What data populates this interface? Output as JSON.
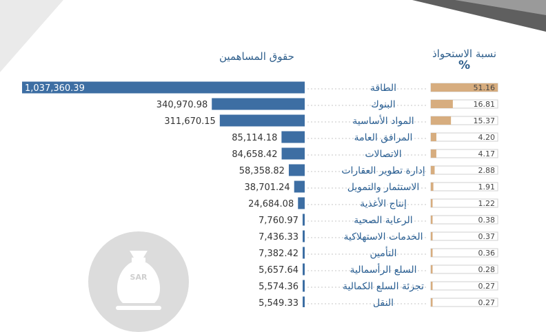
{
  "headers": {
    "equity": "حقوق المساهمين",
    "ownership": "نسبة الاستحواذ",
    "ownership_unit": "%"
  },
  "badge": {
    "text": "SAR",
    "icon": "money-bag-icon"
  },
  "colors": {
    "equity_bar": "#3d6ea3",
    "ownership_bar": "#d7ad7f",
    "header_text": "#2f5f8c",
    "label_text": "#2a5f93"
  },
  "chart_data": {
    "type": "bar",
    "categories": [
      "الطاقة",
      "البنوك",
      "المواد الأساسية",
      "المرافق العامة",
      "الاتصالات",
      "إدارة تطوير العقارات",
      "الاستثمار والتمويل",
      "إنتاج الأغذية",
      "الرعاية الصحية",
      "الخدمات الاستهلاكية",
      "التأمين",
      "السلع الرأسمالية",
      "تجزئة السلع الكمالية",
      "النقل"
    ],
    "series": [
      {
        "name": "حقوق المساهمين",
        "values": [
          1037360.39,
          340970.98,
          311670.15,
          85114.18,
          84658.42,
          58358.82,
          38701.24,
          24684.08,
          7760.97,
          7436.33,
          7382.42,
          5657.64,
          5574.36,
          5549.33
        ],
        "labels": [
          "1,037,360.39",
          "340,970.98",
          "311,670.15",
          "85,114.18",
          "84,658.42",
          "58,358.82",
          "38,701.24",
          "24,684.08",
          "7,760.97",
          "7,436.33",
          "7,382.42",
          "5,657.64",
          "5,574.36",
          "5,549.33"
        ]
      },
      {
        "name": "نسبة الاستحواذ %",
        "values": [
          51.16,
          16.81,
          15.37,
          4.2,
          4.17,
          2.88,
          1.91,
          1.22,
          0.38,
          0.37,
          0.36,
          0.28,
          0.27,
          0.27
        ],
        "labels": [
          "51.16",
          "16.81",
          "15.37",
          "4.20",
          "4.17",
          "2.88",
          "1.91",
          "1.22",
          "0.38",
          "0.37",
          "0.36",
          "0.28",
          "0.27",
          "0.27"
        ]
      }
    ]
  }
}
